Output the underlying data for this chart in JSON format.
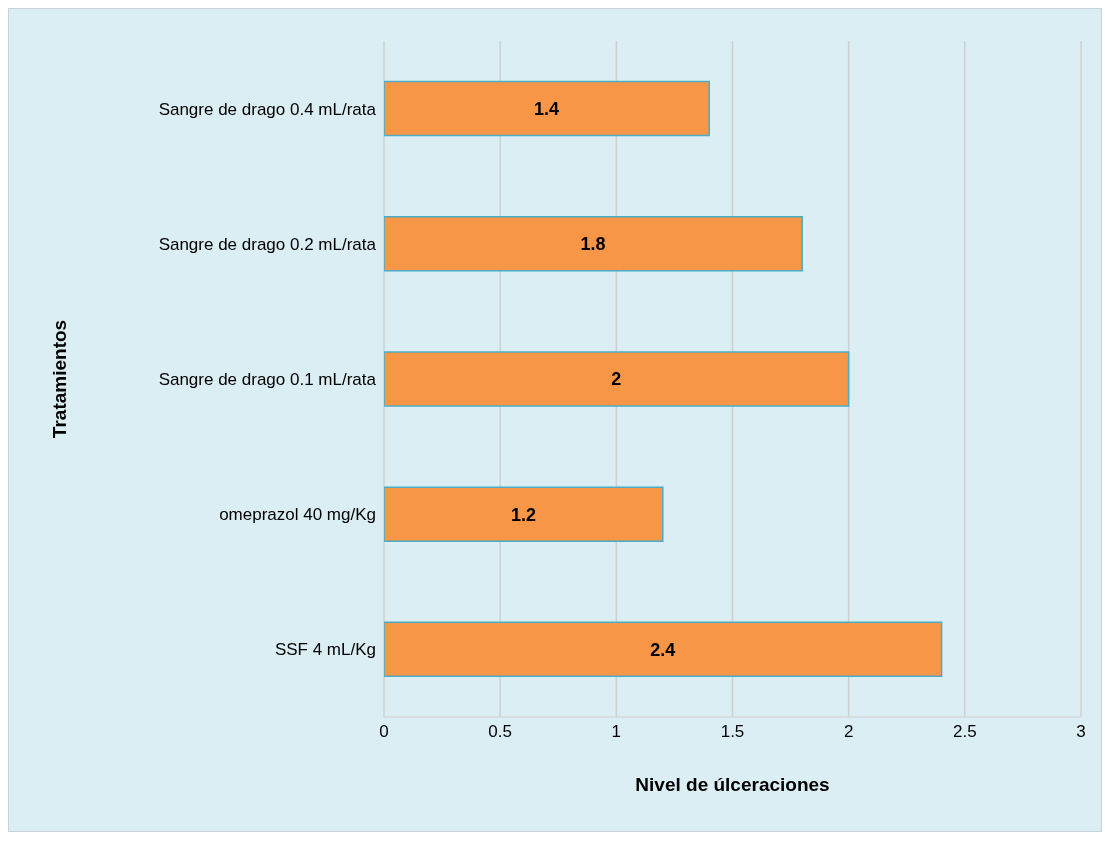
{
  "chart_data": {
    "type": "bar",
    "orientation": "horizontal",
    "xlabel": "Nivel de úlceraciones",
    "ylabel": "Tratamientos",
    "categories": [
      "Sangre de drago 0.4 mL/rata",
      "Sangre de drago 0.2 mL/rata",
      "Sangre de drago 0.1 mL/rata",
      "omeprazol 40 mg/Kg",
      "SSF 4 mL/Kg"
    ],
    "values": [
      1.4,
      1.8,
      2,
      1.2,
      2.4
    ],
    "color": "#f79646",
    "xlim": [
      0,
      3
    ],
    "xticks": [
      0,
      0.5,
      1,
      1.5,
      2,
      2.5,
      3
    ],
    "grid": "x",
    "data_labels": true
  }
}
